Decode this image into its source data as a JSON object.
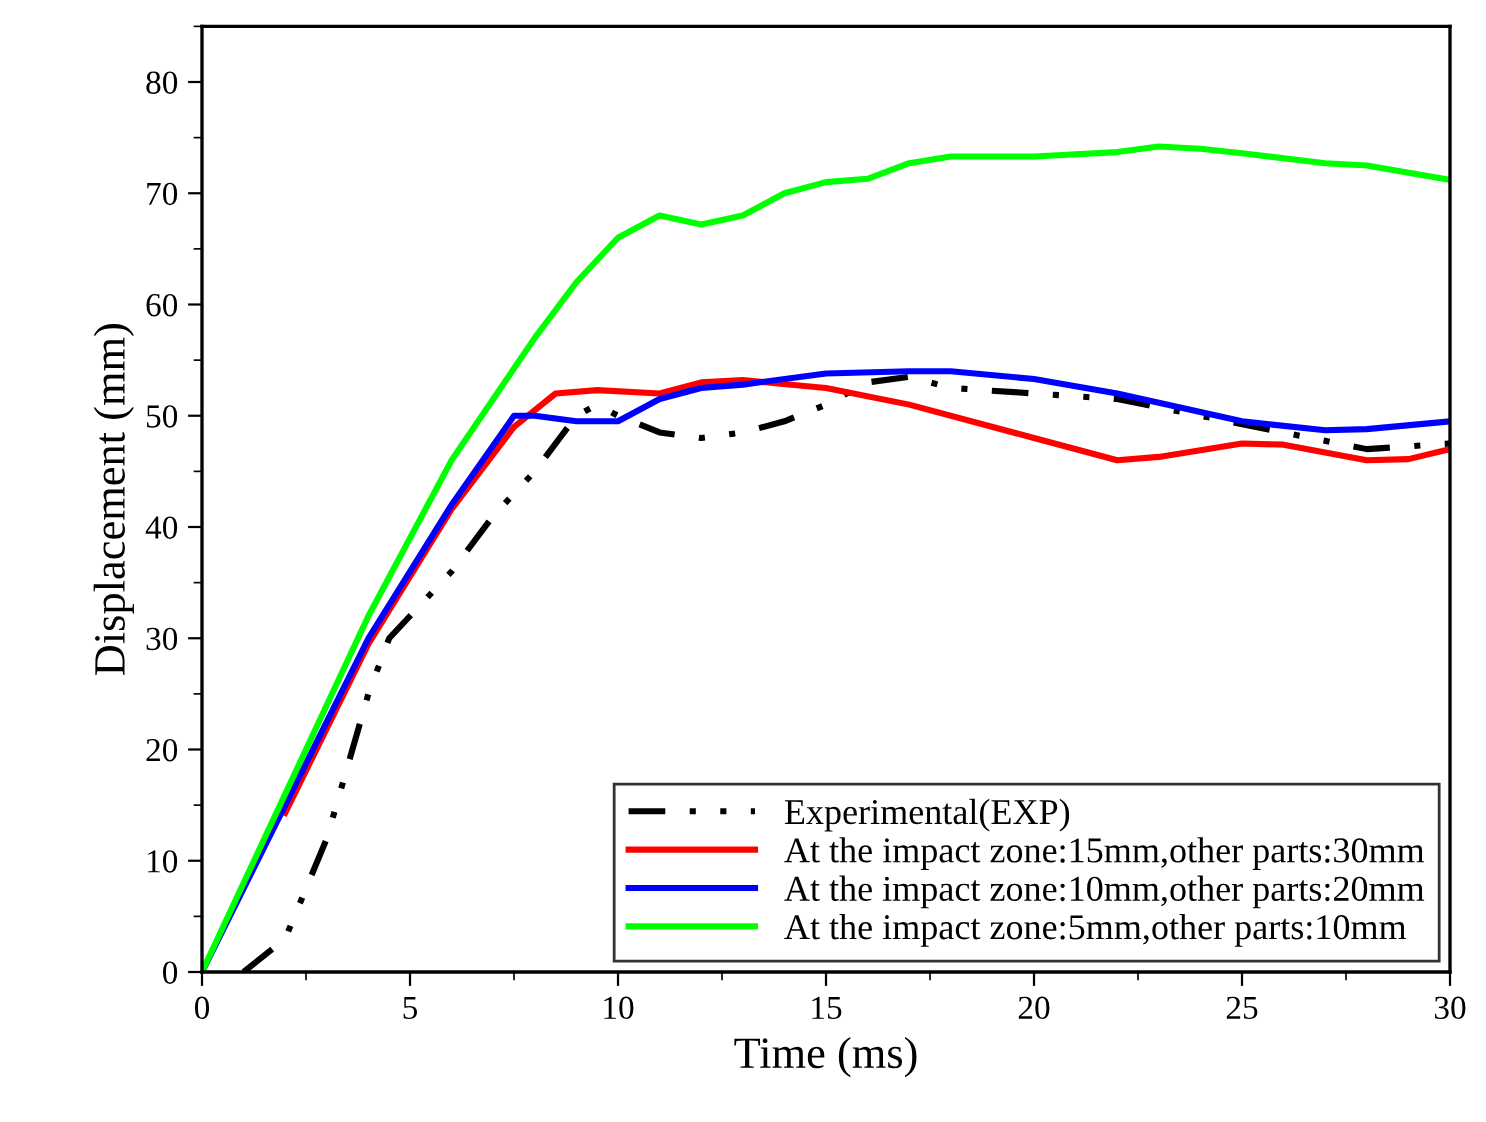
{
  "chart_data": {
    "type": "line",
    "xlabel": "Time (ms)",
    "ylabel": "Displacement (mm)",
    "xlim": [
      0,
      30
    ],
    "ylim": [
      0,
      85
    ],
    "xticks": [
      0,
      5,
      10,
      15,
      20,
      25,
      30
    ],
    "yticks": [
      0,
      10,
      20,
      30,
      40,
      50,
      60,
      70,
      80
    ],
    "grid": false,
    "legend": "bottom right",
    "marker": "none",
    "series": [
      {
        "name": "Experimental(EXP)",
        "color": "#000000",
        "line_style": "dashed",
        "x": [
          1,
          2,
          3,
          4,
          4.5,
          5,
          6,
          7,
          8,
          9,
          9.5,
          10,
          11,
          12,
          13,
          14,
          15,
          16,
          17,
          18,
          20,
          22,
          24,
          26,
          28,
          30
        ],
        "values": [
          0,
          3,
          12,
          25,
          30,
          32,
          36,
          41,
          45,
          50,
          51,
          50,
          48.5,
          48,
          48.5,
          49.5,
          51,
          53,
          53.5,
          52.5,
          52,
          51.5,
          50,
          48.5,
          47,
          47.5
        ]
      },
      {
        "name": "At the impact zone:15mm,other parts:30mm",
        "color": "#ff0000",
        "line_style": "solid",
        "x": [
          2,
          4,
          6,
          7.5,
          8.5,
          9.5,
          11,
          12,
          13,
          15,
          17,
          20,
          22,
          23,
          25,
          26,
          28,
          29,
          30
        ],
        "values": [
          14.3,
          29.5,
          41.6,
          49,
          52,
          52.3,
          52,
          53,
          53.2,
          52.5,
          51,
          48,
          46,
          46.3,
          47.5,
          47.4,
          46,
          46.1,
          47
        ]
      },
      {
        "name": "At the impact zone:10mm,other parts:20mm",
        "color": "#0000ff",
        "line_style": "solid",
        "x": [
          0,
          2,
          4,
          6,
          7.5,
          8,
          9,
          10,
          11,
          12,
          13,
          15,
          17,
          18,
          20,
          22,
          25,
          27,
          28,
          30
        ],
        "values": [
          0,
          15,
          30,
          42,
          50,
          50,
          49.5,
          49.5,
          51.5,
          52.5,
          52.8,
          53.8,
          54,
          54,
          53.3,
          52,
          49.5,
          48.7,
          48.8,
          49.5
        ]
      },
      {
        "name": "At the impact zone:5mm,other parts:10mm",
        "color": "#00ff00",
        "line_style": "solid",
        "x": [
          0,
          2,
          4,
          6,
          8,
          9,
          10,
          11,
          12,
          13,
          14,
          15,
          16,
          17,
          18,
          20,
          22,
          23,
          24,
          25,
          27,
          28,
          30
        ],
        "values": [
          0,
          16,
          32,
          46,
          57,
          62,
          66,
          68,
          67.2,
          68,
          70,
          71,
          71.3,
          72.7,
          73.3,
          73.3,
          73.7,
          74.2,
          74,
          73.6,
          72.7,
          72.5,
          71.2
        ]
      }
    ]
  }
}
